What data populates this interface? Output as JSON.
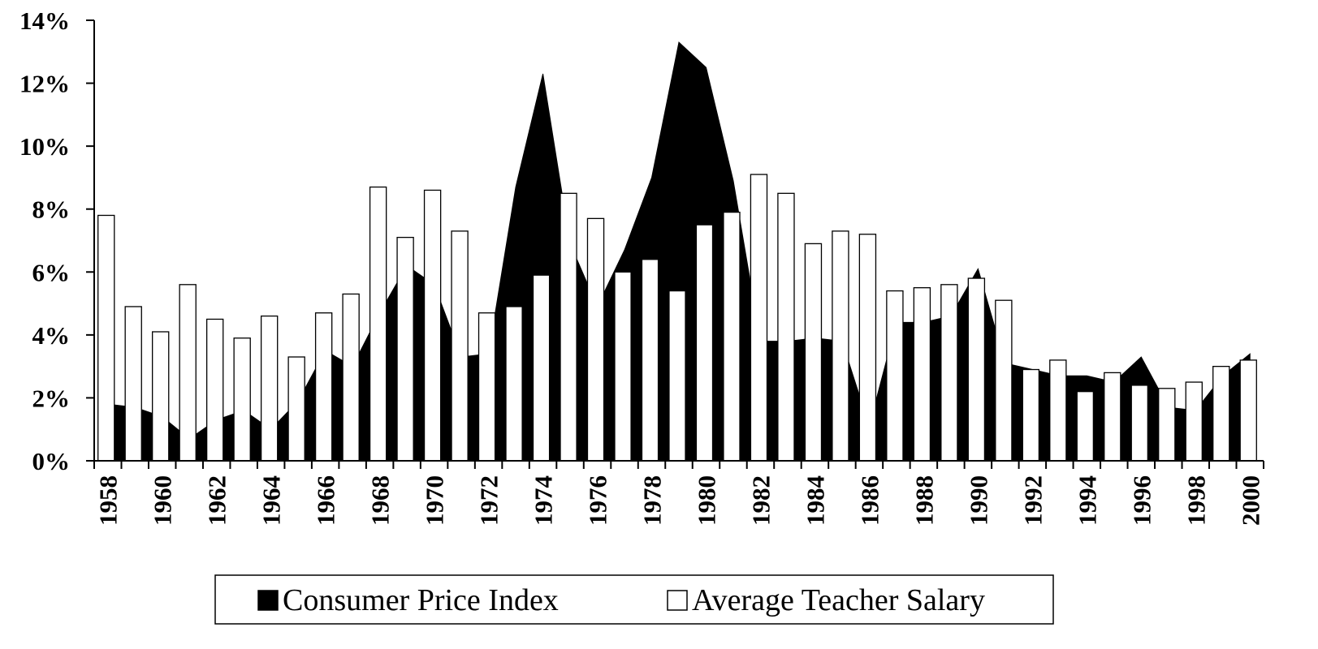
{
  "chart_data": {
    "type": "bar_area",
    "categories": [
      "1958",
      null,
      "1960",
      null,
      "1962",
      null,
      "1964",
      null,
      "1966",
      null,
      "1968",
      null,
      "1970",
      null,
      "1972",
      null,
      "1974",
      null,
      "1976",
      null,
      "1978",
      null,
      "1980",
      null,
      "1982",
      null,
      "1984",
      null,
      "1986",
      null,
      "1988",
      null,
      "1990",
      null,
      "1992",
      null,
      "1994",
      null,
      "1996",
      null,
      "1998",
      null,
      "2000"
    ],
    "series": [
      {
        "name": "Consumer Price Index",
        "color": "#000000",
        "kind": "area",
        "values": [
          1.8,
          1.7,
          1.4,
          0.7,
          1.3,
          1.6,
          1.0,
          1.9,
          3.5,
          3.0,
          4.7,
          6.2,
          5.6,
          3.3,
          3.4,
          8.7,
          12.3,
          6.9,
          4.9,
          6.7,
          9.0,
          13.3,
          12.5,
          8.9,
          3.8,
          3.8,
          3.9,
          3.8,
          1.1,
          4.4,
          4.4,
          4.6,
          6.1,
          3.1,
          2.9,
          2.7,
          2.7,
          2.5,
          3.3,
          1.7,
          1.6,
          2.7,
          3.4
        ]
      },
      {
        "name": "Average Teacher Salary",
        "color": "#ffffff",
        "kind": "bar",
        "values": [
          7.8,
          4.9,
          4.1,
          5.6,
          4.5,
          3.9,
          4.6,
          3.3,
          4.7,
          5.3,
          8.7,
          7.1,
          8.6,
          7.3,
          4.7,
          4.9,
          5.9,
          8.5,
          7.7,
          6.0,
          6.4,
          5.4,
          7.5,
          7.9,
          9.1,
          8.5,
          6.9,
          7.3,
          7.2,
          5.4,
          5.5,
          5.6,
          5.8,
          5.1,
          2.9,
          3.2,
          2.2,
          2.8,
          2.4,
          2.3,
          2.5,
          3.0,
          3.2
        ]
      }
    ],
    "ylim": [
      0,
      14
    ],
    "yticks": [
      {
        "value": 0,
        "label": "0%"
      },
      {
        "value": 2,
        "label": "2%"
      },
      {
        "value": 4,
        "label": "4%"
      },
      {
        "value": 6,
        "label": "6%"
      },
      {
        "value": 8,
        "label": "8%"
      },
      {
        "value": 10,
        "label": "10%"
      },
      {
        "value": 12,
        "label": "12%"
      },
      {
        "value": 14,
        "label": "14%"
      }
    ],
    "grid": false,
    "legend": "bottom"
  }
}
